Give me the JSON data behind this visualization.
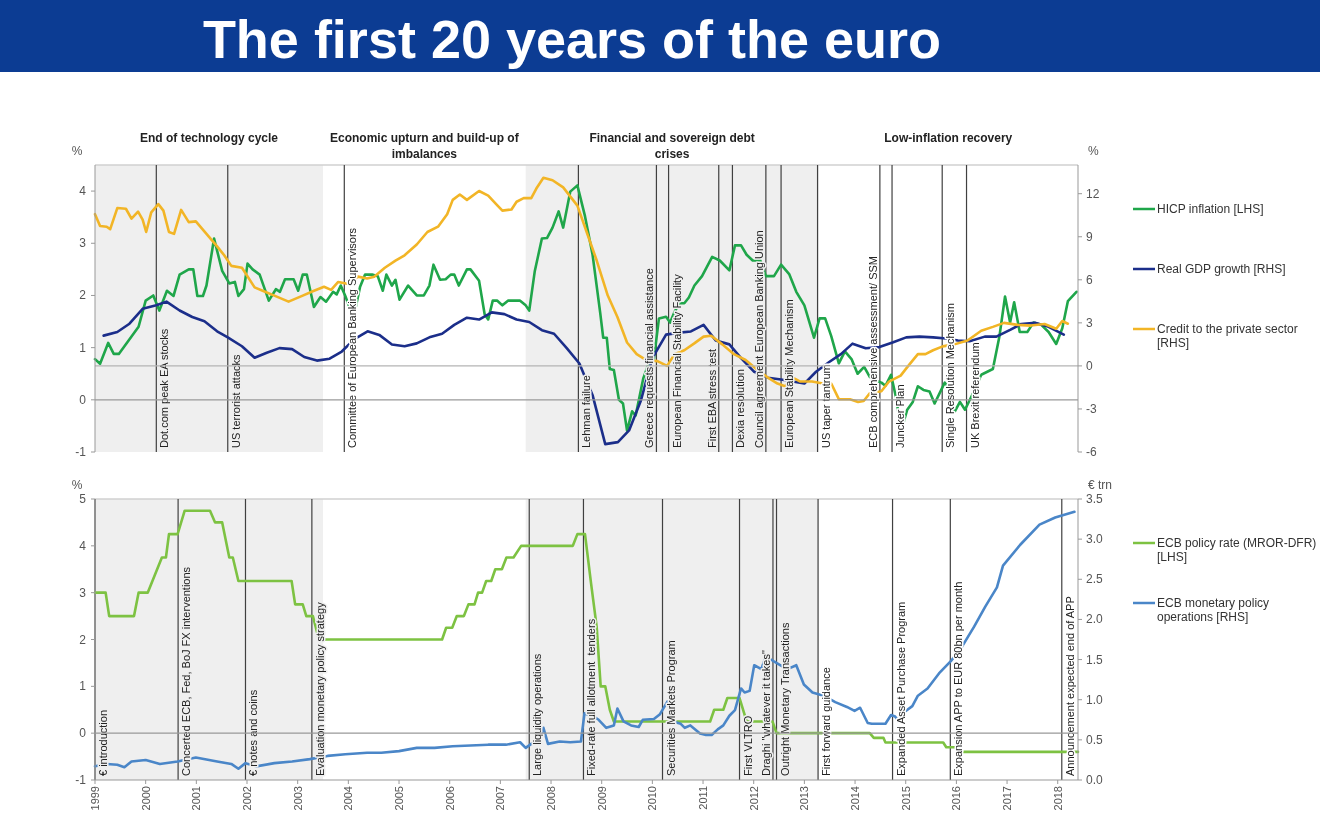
{
  "chart_data": [
    {
      "type": "line",
      "title": "The first 20 years of the euro",
      "ylabel": "%",
      "y2label": "%",
      "xlim": [
        1999,
        2018.4
      ],
      "ylim": [
        -1,
        4.5
      ],
      "yticks": [
        -1,
        0,
        1,
        2,
        3,
        4
      ],
      "y2lim": [
        -6,
        14
      ],
      "y2ticks": [
        -6,
        -3,
        0,
        3,
        6,
        9,
        12
      ],
      "tick_labels": "y",
      "legend": "right",
      "annotations": [
        "End of technology cycle",
        "Economic upturn and build-up of imbalances",
        "Financial and sovereign debt crises",
        "Low-inflation recovery"
      ],
      "bands": [
        {
          "axis": "x",
          "from": 1999,
          "to": 2003.5,
          "color": "#efefef"
        },
        {
          "axis": "x",
          "from": 2007.5,
          "to": 2013.28,
          "color": "#efefef"
        }
      ],
      "ref_lines": [
        {
          "axis": "y",
          "value": 0,
          "color": "#9a9a9a"
        },
        {
          "axis": "y2",
          "value": 0,
          "color": "#b4b4b4"
        },
        {
          "axis": "x",
          "value": 2000.21,
          "label": "Dot.com peak EA stocks",
          "color": "#404040"
        },
        {
          "axis": "x",
          "value": 2001.62,
          "label": "US terrorist attacks",
          "color": "#404040"
        },
        {
          "axis": "x",
          "value": 2003.92,
          "label": "Committee of European Banking Supervisors",
          "color": "#404040"
        },
        {
          "axis": "x",
          "value": 2008.54,
          "label": "Lehman failure",
          "color": "#404040"
        },
        {
          "axis": "x",
          "value": 2010.08,
          "label": "Greece requests financial assistance",
          "color": "#404040"
        },
        {
          "axis": "x",
          "value": 2010.32,
          "label": "European Financial Stability Facility",
          "color": "#404040"
        },
        {
          "axis": "x",
          "value": 2011.31,
          "label": "First EBA stress test",
          "color": "#404040"
        },
        {
          "axis": "x",
          "value": 2011.58,
          "label": "Dexia resolution",
          "color": "#404040"
        },
        {
          "axis": "x",
          "value": 2012.24,
          "label": "Council agreement European Banking Union",
          "color": "#404040"
        },
        {
          "axis": "x",
          "value": 2012.54,
          "label": "European Stability Mechanism",
          "color": "#404040"
        },
        {
          "axis": "x",
          "value": 2013.26,
          "label": "US taper tantrum",
          "color": "#404040"
        },
        {
          "axis": "x",
          "value": 2014.49,
          "label": "ECB comprehensive assessment/ SSM",
          "color": "#404040"
        },
        {
          "axis": "x",
          "value": 2014.73,
          "label": "Juncker Plan",
          "color": "#404040"
        },
        {
          "axis": "x",
          "value": 2015.72,
          "label": "Single Resolution Mechanism",
          "color": "#404040"
        },
        {
          "axis": "x",
          "value": 2016.2,
          "label": "UK Brexit referendum",
          "color": "#404040"
        }
      ],
      "series": [
        {
          "name": "HICP inflation [LHS]",
          "color": "#1fa64a",
          "x": [
            1999,
            1999.1,
            1999.26,
            1999.37,
            1999.47,
            1999.86,
            2000,
            2000.15,
            2000.27,
            2000.42,
            2000.55,
            2000.67,
            2000.85,
            2000.94,
            2001.02,
            2001.13,
            2001.2,
            2001.35,
            2001.51,
            2001.65,
            2001.76,
            2001.83,
            2001.94,
            2002.01,
            2002.11,
            2002.25,
            2002.43,
            2002.57,
            2002.65,
            2002.75,
            2002.92,
            2003.01,
            2003.1,
            2003.18,
            2003.32,
            2003.45,
            2003.56,
            2003.7,
            2003.77,
            2003.85,
            2003.94,
            2004.1,
            2004.23,
            2004.33,
            2004.47,
            2004.58,
            2004.68,
            2004.75,
            2004.86,
            2004.93,
            2005.01,
            2005.18,
            2005.35,
            2005.49,
            2005.6,
            2005.68,
            2005.81,
            2005.92,
            2006.02,
            2006.09,
            2006.18,
            2006.34,
            2006.41,
            2006.58,
            2006.69,
            2006.76,
            2006.85,
            2006.94,
            2007.04,
            2007.15,
            2007.39,
            2007.5,
            2007.57,
            2007.68,
            2007.82,
            2007.92,
            2008.03,
            2008.15,
            2008.24,
            2008.38,
            2008.52,
            2008.67,
            2008.82,
            2008.97,
            2009.03,
            2009.1,
            2009.16,
            2009.24,
            2009.34,
            2009.42,
            2009.5,
            2009.6,
            2009.67,
            2009.82,
            2009.96,
            2010.03,
            2010.13,
            2010.27,
            2010.35,
            2010.43,
            2010.53,
            2010.63,
            2010.72,
            2010.83,
            2010.98,
            2011.18,
            2011.33,
            2011.52,
            2011.63,
            2011.75,
            2011.86,
            2011.98,
            2012.13,
            2012.24,
            2012.4,
            2012.54,
            2012.7,
            2012.84,
            2013,
            2013.19,
            2013.3,
            2013.41,
            2013.53,
            2013.68,
            2013.8,
            2013.93,
            2014.05,
            2014.18,
            2014.29,
            2014.41,
            2014.52,
            2014.6,
            2014.71,
            2014.81,
            2014.91,
            2015.03,
            2015.14,
            2015.24,
            2015.35,
            2015.47,
            2015.57,
            2015.66,
            2015.77,
            2015.88,
            2015.97,
            2016.07,
            2016.17,
            2016.34,
            2016.49,
            2016.72,
            2016.85,
            2016.96,
            2017.06,
            2017.14,
            2017.25,
            2017.4,
            2017.52,
            2017.67,
            2017.82,
            2017.97,
            2018.09,
            2018.2,
            2018.37
          ],
          "values": [
            0.78,
            0.69,
            1.09,
            0.88,
            0.88,
            1.4,
            1.9,
            2.0,
            1.71,
            2.09,
            1.99,
            2.4,
            2.5,
            2.5,
            1.99,
            1.99,
            2.19,
            3.09,
            2.47,
            2.23,
            2.26,
            1.99,
            2.12,
            2.61,
            2.5,
            2.4,
            1.9,
            2.12,
            2.07,
            2.31,
            2.31,
            2.09,
            2.4,
            2.4,
            1.78,
            1.97,
            1.88,
            2.07,
            2.02,
            2.19,
            1.99,
            1.57,
            2.16,
            2.4,
            2.4,
            2.37,
            2.09,
            2.4,
            2.19,
            2.3,
            1.92,
            2.19,
            2.0,
            2.0,
            2.19,
            2.59,
            2.3,
            2.31,
            2.4,
            2.4,
            2.19,
            2.5,
            2.5,
            2.28,
            1.64,
            1.54,
            1.9,
            1.9,
            1.81,
            1.9,
            1.9,
            1.81,
            1.71,
            2.47,
            3.09,
            3.1,
            3.3,
            3.61,
            3.3,
            3.99,
            4.11,
            3.52,
            2.78,
            1.67,
            1.19,
            1.19,
            0.59,
            0.57,
            0.0,
            -0.07,
            -0.59,
            -0.22,
            -0.3,
            0.41,
            0.78,
            0.78,
            1.56,
            1.59,
            1.48,
            1.67,
            1.85,
            1.85,
            1.96,
            2.19,
            2.37,
            2.74,
            2.67,
            2.48,
            2.96,
            2.96,
            2.78,
            2.67,
            2.67,
            2.37,
            2.37,
            2.59,
            2.41,
            2.07,
            1.81,
            1.19,
            1.56,
            1.56,
            1.22,
            0.7,
            0.93,
            0.78,
            0.5,
            0.63,
            0.44,
            0.37,
            0.33,
            0.27,
            0.48,
            0.04,
            -0.59,
            -0.19,
            -0.04,
            0.26,
            0.19,
            0.16,
            -0.07,
            0.11,
            0.33,
            0.19,
            -0.22,
            -0.04,
            -0.19,
            0.15,
            0.48,
            0.59,
            1.22,
            1.98,
            1.48,
            1.87,
            1.3,
            1.3,
            1.48,
            1.44,
            1.3,
            1.07,
            1.37,
            1.89,
            2.07
          ]
        },
        {
          "name": "Real GDP growth [RHS]",
          "color": "#1b2e8a",
          "axis": "y2",
          "x": [
            1999.17,
            1999.44,
            1999.68,
            1999.94,
            2000.21,
            2000.41,
            2000.67,
            2000.92,
            2001.16,
            2001.41,
            2001.62,
            2001.9,
            2002.15,
            2002.39,
            2002.64,
            2002.89,
            2003.13,
            2003.38,
            2003.63,
            2003.87,
            2004.12,
            2004.38,
            2004.61,
            2004.86,
            2005.11,
            2005.35,
            2005.6,
            2005.85,
            2006.09,
            2006.34,
            2006.58,
            2006.83,
            2007.08,
            2007.32,
            2007.57,
            2007.82,
            2008.06,
            2008.31,
            2008.56,
            2008.82,
            2009.07,
            2009.32,
            2009.54,
            2009.77,
            2010,
            2010.27,
            2010.53,
            2010.76,
            2011.01,
            2011.25,
            2011.52,
            2011.75,
            2012.01,
            2012.28,
            2012.54,
            2012.77,
            2013,
            2013.23,
            2013.49,
            2013.72,
            2013.95,
            2014.21,
            2014.48,
            2014.74,
            2015.01,
            2015.27,
            2015.54,
            2015.8,
            2016.03,
            2016.26,
            2016.56,
            2016.79,
            2017.06,
            2017.28,
            2017.55,
            2017.82,
            2018.12
          ],
          "values": [
            2.11,
            2.36,
            2.94,
            3.98,
            4.23,
            4.48,
            3.86,
            3.41,
            3.11,
            2.41,
            1.99,
            1.37,
            0.57,
            0.92,
            1.24,
            1.17,
            0.62,
            0.37,
            0.5,
            1.0,
            1.87,
            2.41,
            2.16,
            1.49,
            1.37,
            1.57,
            1.99,
            2.24,
            2.86,
            3.36,
            3.23,
            3.73,
            3.61,
            3.23,
            3.06,
            2.49,
            2.24,
            1.24,
            0.17,
            -2.04,
            -5.45,
            -5.31,
            -4.5,
            -2.45,
            0.54,
            2.18,
            2.32,
            2.4,
            2.86,
            1.77,
            1.5,
            0.54,
            -0.41,
            -0.82,
            -0.95,
            -1.09,
            -1.23,
            -0.41,
            0.27,
            0.82,
            1.55,
            1.23,
            1.31,
            1.63,
            1.99,
            2.04,
            1.99,
            1.91,
            1.77,
            1.72,
            2.04,
            2.04,
            2.51,
            2.92,
            3.0,
            2.72,
            2.18
          ]
        },
        {
          "name": "Credit to the private sector [RHS]",
          "color": "#f2b526",
          "axis": "y2",
          "x": [
            1999,
            1999.1,
            1999.23,
            1999.3,
            1999.44,
            1999.61,
            1999.72,
            1999.85,
            1999.94,
            2000.01,
            2000.11,
            2000.25,
            2000.35,
            2000.46,
            2000.56,
            2000.7,
            2000.85,
            2000.99,
            2001.2,
            2001.41,
            2001.55,
            2001.69,
            2001.9,
            2002.15,
            2002.32,
            2002.54,
            2002.82,
            2003.1,
            2003.31,
            2003.52,
            2003.66,
            2003.8,
            2003.98,
            2004.19,
            2004.37,
            2004.51,
            2004.72,
            2004.93,
            2005.11,
            2005.35,
            2005.56,
            2005.77,
            2005.95,
            2006.06,
            2006.2,
            2006.34,
            2006.58,
            2006.76,
            2006.94,
            2007.04,
            2007.22,
            2007.32,
            2007.46,
            2007.61,
            2007.71,
            2007.85,
            2008.03,
            2008.24,
            2008.52,
            2008.71,
            2008.9,
            2009.12,
            2009.31,
            2009.5,
            2009.69,
            2009.88,
            2010.1,
            2010.29,
            2010.44,
            2010.63,
            2010.82,
            2011.01,
            2011.16,
            2011.38,
            2011.61,
            2011.84,
            2012.07,
            2012.28,
            2012.47,
            2012.62,
            2012.77,
            2012.92,
            2013.15,
            2013.37,
            2013.53,
            2013.68,
            2013.9,
            2014.06,
            2014.17,
            2014.29,
            2014.52,
            2014.67,
            2014.9,
            2015.05,
            2015.24,
            2015.39,
            2015.54,
            2015.73,
            2015.96,
            2016.22,
            2016.49,
            2016.72,
            2016.94,
            2017.21,
            2017.47,
            2017.74,
            2017.97,
            2018.09,
            2018.2
          ],
          "values": [
            10.57,
            9.75,
            9.7,
            9.53,
            11.0,
            10.95,
            10.27,
            10.75,
            10.2,
            9.33,
            10.7,
            11.27,
            10.82,
            9.33,
            9.2,
            10.87,
            10.02,
            10.07,
            9.2,
            8.33,
            7.71,
            6.97,
            6.84,
            5.47,
            5.22,
            4.9,
            4.48,
            4.9,
            5.22,
            5.52,
            5.3,
            5.85,
            5.72,
            6.22,
            6.09,
            6.22,
            6.84,
            7.34,
            7.71,
            8.46,
            9.33,
            9.7,
            10.57,
            11.57,
            11.94,
            11.57,
            12.19,
            11.87,
            11.19,
            10.82,
            10.9,
            11.44,
            11.69,
            11.69,
            12.36,
            13.11,
            12.94,
            12.44,
            11.17,
            9.26,
            7.36,
            4.9,
            3.41,
            1.63,
            0.82,
            0.41,
            0.33,
            0.0,
            0.82,
            1.09,
            1.55,
            2.04,
            2.1,
            1.5,
            0.82,
            0.41,
            -0.27,
            -0.82,
            -1.23,
            -1.42,
            -0.82,
            -1.09,
            -1.09,
            -1.23,
            -1.23,
            -2.32,
            -2.32,
            -2.51,
            -2.45,
            -1.91,
            -1.77,
            -1.09,
            -0.68,
            0.0,
            0.82,
            0.82,
            1.09,
            1.36,
            1.5,
            1.77,
            2.45,
            2.72,
            3.0,
            2.86,
            2.81,
            2.92,
            2.59,
            3.13,
            2.94
          ]
        }
      ]
    },
    {
      "type": "line",
      "ylabel": "%",
      "y2label": "€ trn",
      "xlim": [
        1999,
        2018.4
      ],
      "xticks": [
        1999,
        2000,
        2001,
        2002,
        2003,
        2004,
        2005,
        2006,
        2007,
        2008,
        2009,
        2010,
        2011,
        2012,
        2013,
        2014,
        2015,
        2016,
        2017,
        2018
      ],
      "ylim": [
        -1,
        5
      ],
      "yticks": [
        -1,
        0,
        1,
        2,
        3,
        4,
        5
      ],
      "y2lim": [
        0,
        3.5
      ],
      "y2ticks": [
        {
          "value": 0,
          "label": "0.0"
        },
        0.5,
        {
          "value": 1,
          "label": "1.0"
        },
        1.5,
        {
          "value": 2,
          "label": "2.0"
        },
        2.5,
        {
          "value": 3,
          "label": "3.0"
        },
        3.5
      ],
      "legend": "right",
      "bands": [
        {
          "axis": "x",
          "from": 1999,
          "to": 2003.5,
          "color": "#efefef"
        },
        {
          "axis": "x",
          "from": 2007.5,
          "to": 2013.28,
          "color": "#efefef"
        }
      ],
      "ref_lines": [
        {
          "axis": "y",
          "value": 0,
          "color": "#999999"
        },
        {
          "axis": "x",
          "value": 1999,
          "label": "€ introduction",
          "color": "#404040"
        },
        {
          "axis": "x",
          "value": 2000.64,
          "label": "Concerted ECB, Fed, BoJ FX interventions",
          "color": "#404040"
        },
        {
          "axis": "x",
          "value": 2001.97,
          "label": "€ notes and coins",
          "color": "#404040"
        },
        {
          "axis": "x",
          "value": 2003.28,
          "label": "Evaluation monetary policy strategy",
          "color": "#404040"
        },
        {
          "axis": "x",
          "value": 2007.57,
          "label": "Large liquidity operations",
          "color": "#404040"
        },
        {
          "axis": "x",
          "value": 2008.64,
          "label": "Fixed-rate full allotment  tenders",
          "color": "#404040"
        },
        {
          "axis": "x",
          "value": 2010.2,
          "label": "Securities Markets Program",
          "color": "#404040"
        },
        {
          "axis": "x",
          "value": 2011.72,
          "label": "First VLTRO",
          "color": "#404040"
        },
        {
          "axis": "x",
          "value": 2012.38,
          "label": "Draghi \"whatever it takes\"",
          "color": "#404040"
        },
        {
          "axis": "x",
          "value": 2012.45,
          "label": "Outright Monetary Transactions",
          "color": "#404040"
        },
        {
          "axis": "x",
          "value": 2013.27,
          "label": "First forward guidance",
          "color": "#404040"
        },
        {
          "axis": "x",
          "value": 2014.74,
          "label": "Expanded Asset Purchase Program",
          "color": "#404040"
        },
        {
          "axis": "x",
          "value": 2015.88,
          "label": "Expansion APP to EUR 80bn per month",
          "color": "#404040"
        },
        {
          "axis": "x",
          "value": 2018.08,
          "label": "Announcement expected end of APP",
          "color": "#404040"
        }
      ],
      "series": [
        {
          "name": "ECB policy rate (MROR-DFR) [LHS]",
          "color": "#7dc242",
          "x": [
            1999,
            1999.21,
            1999.28,
            1999.77,
            1999.86,
            2000.04,
            2000.32,
            2000.4,
            2000.46,
            2000.63,
            2000.77,
            2001.27,
            2001.37,
            2001.51,
            2001.65,
            2001.72,
            2001.83,
            2002.88,
            2002.95,
            2003.1,
            2003.17,
            2003.3,
            2003.42,
            2005.85,
            2005.93,
            2006.05,
            2006.14,
            2006.28,
            2006.37,
            2006.49,
            2006.56,
            2006.64,
            2006.72,
            2006.82,
            2006.9,
            2007.03,
            2007.12,
            2007.26,
            2007.41,
            2008.43,
            2008.52,
            2008.67,
            2008.79,
            2008.9,
            2008.98,
            2009.07,
            2009.16,
            2009.24,
            2011.14,
            2011.22,
            2011.4,
            2011.48,
            2011.72,
            2011.86,
            2012.37,
            2012.45,
            2014.29,
            2014.37,
            2014.56,
            2014.6,
            2015.74,
            2015.8,
            2016.0,
            2016.07,
            2018.4
          ],
          "values": [
            3,
            3,
            2.5,
            2.5,
            3,
            3,
            3.75,
            3.75,
            4.25,
            4.25,
            4.75,
            4.75,
            4.5,
            4.5,
            3.75,
            3.75,
            3.25,
            3.25,
            2.75,
            2.75,
            2.5,
            2.5,
            2,
            2,
            2.25,
            2.25,
            2.5,
            2.5,
            2.75,
            2.75,
            3,
            3,
            3.25,
            3.25,
            3.5,
            3.5,
            3.75,
            3.75,
            4,
            4,
            4.25,
            4.25,
            3.2,
            2.28,
            1,
            1,
            0.5,
            0.25,
            0.25,
            0.5,
            0.5,
            0.75,
            0.75,
            0.25,
            0.25,
            0,
            0,
            -0.1,
            -0.1,
            -0.2,
            -0.2,
            -0.3,
            -0.3,
            -0.4,
            -0.4
          ]
        },
        {
          "name": "ECB monetary policy operations [RHS]",
          "color": "#4a86c8",
          "axis": "y2",
          "x": [
            1999,
            1999.23,
            1999.44,
            1999.58,
            1999.72,
            2000,
            2000.28,
            2000.63,
            2000.99,
            2001.41,
            2001.69,
            2001.83,
            2001.97,
            2002.18,
            2002.54,
            2002.89,
            2003.24,
            2003.59,
            2003.94,
            2004.37,
            2004.65,
            2005,
            2005.35,
            2005.7,
            2006.06,
            2006.41,
            2006.76,
            2007.11,
            2007.39,
            2007.5,
            2007.61,
            2007.75,
            2007.85,
            2007.94,
            2008.17,
            2008.38,
            2008.59,
            2008.66,
            2008.71,
            2008.82,
            2008.94,
            2009.09,
            2009.24,
            2009.31,
            2009.43,
            2009.58,
            2009.73,
            2009.81,
            2010.03,
            2010.15,
            2010.3,
            2010.41,
            2010.56,
            2010.64,
            2010.75,
            2010.94,
            2011.06,
            2011.17,
            2011.29,
            2011.4,
            2011.52,
            2011.63,
            2011.75,
            2011.82,
            2011.92,
            2012.01,
            2012.15,
            2012.24,
            2012.39,
            2012.58,
            2012.7,
            2012.84,
            2012.99,
            2013.16,
            2013.38,
            2013.61,
            2013.84,
            2013.99,
            2014.1,
            2014.25,
            2014.33,
            2014.6,
            2014.71,
            2014.79,
            2014.86,
            2014.98,
            2015.13,
            2015.24,
            2015.43,
            2015.66,
            2015.89,
            2016.12,
            2016.35,
            2016.57,
            2016.8,
            2016.92,
            2017.26,
            2017.64,
            2017.95,
            2018.33
          ],
          "values": [
            0.17,
            0.2,
            0.19,
            0.16,
            0.23,
            0.25,
            0.2,
            0.23,
            0.28,
            0.23,
            0.2,
            0.14,
            0.21,
            0.17,
            0.21,
            0.23,
            0.26,
            0.3,
            0.32,
            0.34,
            0.34,
            0.36,
            0.4,
            0.4,
            0.42,
            0.43,
            0.44,
            0.44,
            0.47,
            0.4,
            0.45,
            0.47,
            0.65,
            0.45,
            0.48,
            0.47,
            0.48,
            0.83,
            0.82,
            0.8,
            0.75,
            0.65,
            0.68,
            0.89,
            0.73,
            0.68,
            0.66,
            0.75,
            0.76,
            0.82,
            0.98,
            0.73,
            0.7,
            0.65,
            0.68,
            0.58,
            0.56,
            0.56,
            0.63,
            0.68,
            0.8,
            0.87,
            1.14,
            1.09,
            1.11,
            1.43,
            1.38,
            1.54,
            1.48,
            1.41,
            1.39,
            1.43,
            1.19,
            1.09,
            1.05,
            0.97,
            0.91,
            0.86,
            0.9,
            0.71,
            0.7,
            0.7,
            0.81,
            0.79,
            0.73,
            0.85,
            0.92,
            1.05,
            1.14,
            1.33,
            1.48,
            1.67,
            1.91,
            2.16,
            2.4,
            2.67,
            2.93,
            3.18,
            3.27,
            3.34
          ]
        }
      ]
    }
  ]
}
